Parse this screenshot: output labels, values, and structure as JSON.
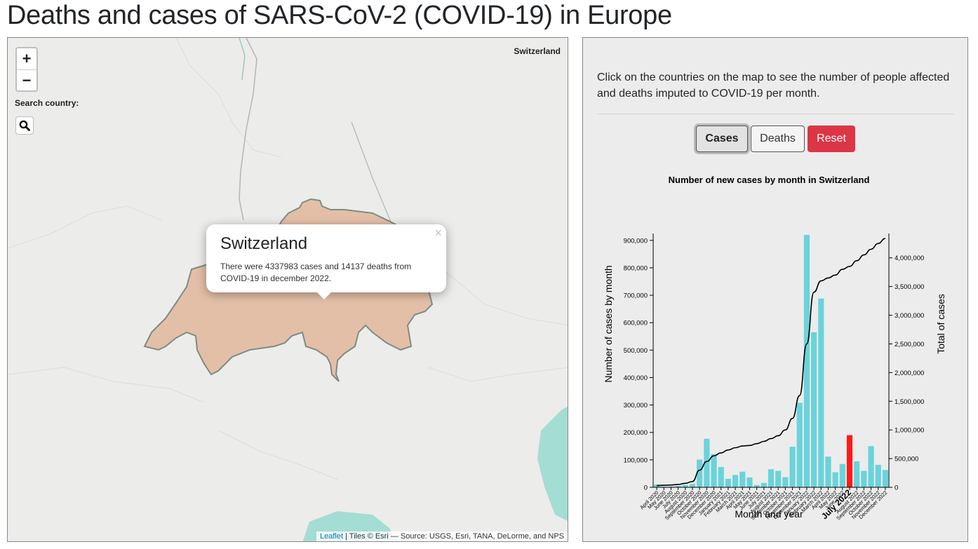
{
  "page": {
    "title": "Deaths and cases of SARS-CoV-2 (COVID-19) in Europe"
  },
  "map": {
    "zoom_in_label": "+",
    "zoom_out_label": "−",
    "search_label": "Search country:",
    "hover_country": "Switzerland",
    "popup": {
      "title": "Switzerland",
      "text": "There were 4337983 cases and 14137 deaths from COVID-19 in december 2022.",
      "close_label": "×"
    },
    "attribution": {
      "link": "Leaflet",
      "text": " | Tiles © Esri — Source: USGS, Esri, TANA, DeLorme, and NPS"
    },
    "colors": {
      "country_fill": "#e3bfa8",
      "country_border": "#7e8c80",
      "water": "#a4ddd4",
      "land": "#ececea"
    }
  },
  "panel": {
    "instructions": "Click on the countries on the map to see the number of people affected and deaths imputed to COVID-19 per month.",
    "buttons": {
      "cases": "Cases",
      "deaths": "Deaths",
      "reset": "Reset"
    }
  },
  "chart_data": {
    "type": "bar",
    "title": "Number of new cases by month in Switzerland",
    "xlabel": "Month and year",
    "ylabel": "Number of cases by month",
    "y2label": "Total of cases",
    "ylim": [
      0,
      920000
    ],
    "y2lim": [
      0,
      4400000
    ],
    "yticks": [
      0,
      100000,
      200000,
      300000,
      400000,
      500000,
      600000,
      700000,
      800000,
      900000
    ],
    "yticks_labels": [
      "0",
      "100,000",
      "200,000",
      "300,000",
      "400,000",
      "500,000",
      "600,000",
      "700,000",
      "800,000",
      "900,000"
    ],
    "y2ticks": [
      0,
      500000,
      1000000,
      1500000,
      2000000,
      2500000,
      3000000,
      3500000,
      4000000
    ],
    "y2ticks_labels": [
      "0",
      "500,000",
      "1,000,000",
      "1,500,000",
      "2,000,000",
      "2,500,000",
      "3,000,000",
      "3,500,000",
      "4,000,000"
    ],
    "categories": [
      "April 2020",
      "May 2020",
      "June 2020",
      "July 2020",
      "August 2020",
      "September 2020",
      "October 2020",
      "November 2020",
      "December 2020",
      "January 2021",
      "February 2021",
      "March 2021",
      "April 2021",
      "May 2021",
      "June 2021",
      "July 2021",
      "August 2021",
      "September 2021",
      "October 2021",
      "November 2021",
      "December 2021",
      "January 2022",
      "February 2022",
      "March 2022",
      "April 2022",
      "May 2022",
      "June 2022",
      "July 2022",
      "August 2022",
      "September 2022",
      "October 2022",
      "November 2022",
      "December 2022"
    ],
    "highlight_index": 27,
    "bar_color": "#6ad3db",
    "highlight_color": "#ff1a1a",
    "line_color": "#000000",
    "series": [
      {
        "type": "bar",
        "values": [
          10000,
          2000,
          3000,
          5000,
          8000,
          12000,
          101000,
          177000,
          121000,
          74000,
          31000,
          45000,
          57000,
          36000,
          8000,
          16000,
          66000,
          60000,
          37000,
          148000,
          308000,
          920000,
          565000,
          688000,
          112000,
          55000,
          85000,
          190000,
          95000,
          60000,
          150000,
          82000,
          63000
        ]
      },
      {
        "type": "line",
        "values": [
          30000,
          35000,
          40000,
          50000,
          70000,
          100000,
          300000,
          450000,
          550000,
          600000,
          650000,
          690000,
          720000,
          730000,
          760000,
          800000,
          850000,
          900000,
          1000000,
          1200000,
          1600000,
          2500000,
          3400000,
          3600000,
          3650000,
          3700000,
          3800000,
          3850000,
          3950000,
          4050000,
          4150000,
          4250000,
          4337983
        ]
      }
    ]
  }
}
